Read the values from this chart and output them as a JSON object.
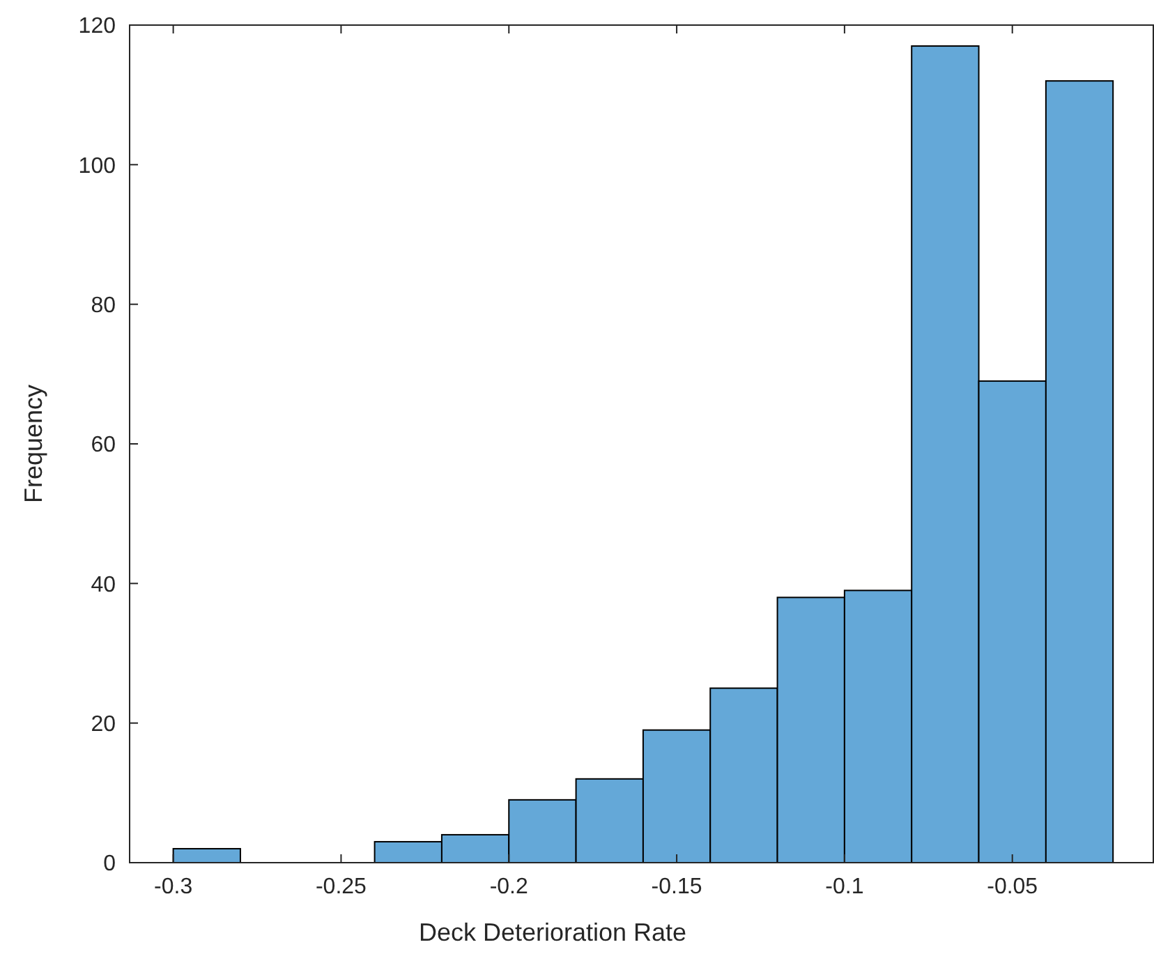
{
  "chart_data": {
    "type": "histogram",
    "xlabel": "Deck Deterioration Rate",
    "ylabel": "Frequency",
    "bins": [
      -0.3,
      -0.28,
      -0.26,
      -0.24,
      -0.22,
      -0.2,
      -0.18,
      -0.16,
      -0.14,
      -0.12,
      -0.1,
      -0.08,
      -0.06,
      -0.04,
      -0.02
    ],
    "values": [
      2,
      0,
      0,
      3,
      4,
      9,
      12,
      19,
      25,
      38,
      39,
      117,
      69,
      112
    ],
    "color": "#64a8d8",
    "xlim": [
      -0.313,
      -0.008
    ],
    "xticks": [
      -0.3,
      -0.25,
      -0.2,
      -0.15,
      -0.1,
      -0.05
    ],
    "ylim": [
      0,
      120
    ],
    "yticks": [
      0,
      20,
      40,
      60,
      80,
      100,
      120
    ],
    "grid": false
  }
}
